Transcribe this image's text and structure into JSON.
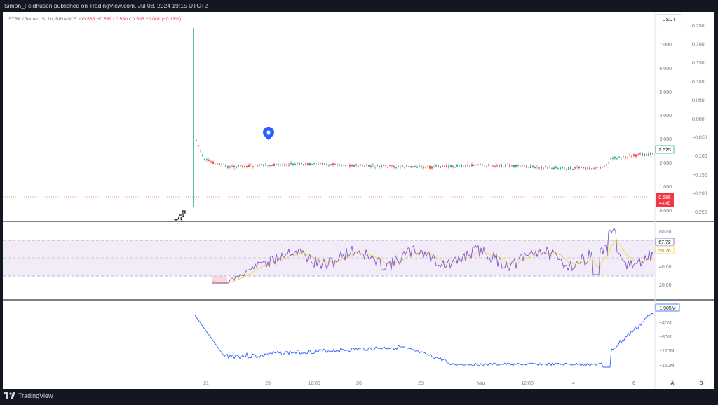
{
  "header": {
    "published_text": "Simon_Feldhusen published on TradingView.com, Jul 08, 2024 19:15 UTC+2"
  },
  "legend": {
    "symbol": "STRK / TetherUS, 1h, BINANCE",
    "open_label": "O",
    "open": "0.588",
    "high_label": "H",
    "high": "0.589",
    "low_label": "L",
    "low": "0.580",
    "close_label": "C",
    "close": "0.586",
    "change": "−0.001 (−0.17%)"
  },
  "currency_button": "USDT",
  "price_axis_left": [
    "7.000",
    "6.000",
    "5.000",
    "4.000",
    "3.000",
    "2.000",
    "1.000",
    "0.000"
  ],
  "price_axis_right": [
    "0.250",
    "0.200",
    "0.150",
    "0.100",
    "0.050",
    "0.000",
    "−0.050",
    "−0.100",
    "−0.150",
    "−0.200",
    "−0.250"
  ],
  "price_badges": {
    "last_value": "2.525",
    "current_price": "0.586",
    "countdown": "44:45"
  },
  "rsi": {
    "axis": [
      "80.00",
      "60.00",
      "40.00",
      "20.00"
    ],
    "value": "67.72",
    "ma_value": "58.76",
    "upper_band": 70,
    "lower_band": 30
  },
  "volume_indicator": {
    "axis": [
      "−40M",
      "−80M",
      "−120M",
      "−160M"
    ],
    "value": "1.905M"
  },
  "time_axis": [
    "21",
    "23",
    "12:00",
    "26",
    "28",
    "Mar",
    "12:00",
    "4",
    "6"
  ],
  "scale_buttons": {
    "auto": "A",
    "log": "B"
  },
  "footer": {
    "brand": "TradingView"
  },
  "colors": {
    "up": "#26a69a",
    "down": "#ef5350",
    "rsi_line": "#7e57c2",
    "rsi_ma": "#fdd835",
    "obv_line": "#2962ff",
    "band_fill": "#ede7f6",
    "marker": "#2962ff"
  }
}
